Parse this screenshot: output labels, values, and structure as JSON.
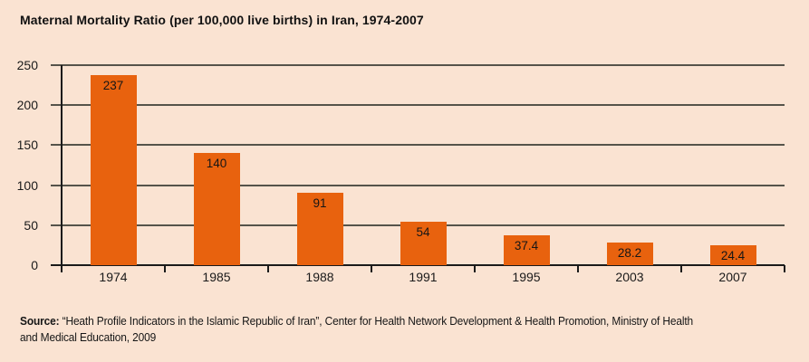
{
  "title": "Maternal Mortality Ratio (per 100,000 live births) in Iran, 1974-2007",
  "chart_data": {
    "type": "bar",
    "categories": [
      "1974",
      "1985",
      "1988",
      "1991",
      "1995",
      "2003",
      "2007"
    ],
    "values": [
      237,
      140,
      91,
      54,
      37.4,
      28.2,
      24.4
    ],
    "title": "Maternal Mortality Ratio (per 100,000 live births) in Iran, 1974-2007",
    "xlabel": "",
    "ylabel": "",
    "ylim": [
      0,
      250
    ],
    "yticks": [
      0,
      50,
      100,
      150,
      200,
      250
    ],
    "grid": true,
    "legend": "none",
    "bar_color": "#e8620e",
    "value_labels_inside_bars": true
  },
  "source": {
    "label": "Source:",
    "text": "“Heath Profile Indicators in the Islamic Republic of Iran”, Center for Health Network Development & Health Promotion, Ministry of Health and Medical Education,  2009"
  },
  "colors": {
    "background": "#fae3d2",
    "bar": "#e8620e",
    "gridline": "#55534a",
    "axis": "#1a1a1a",
    "text": "#1a1a1a"
  }
}
